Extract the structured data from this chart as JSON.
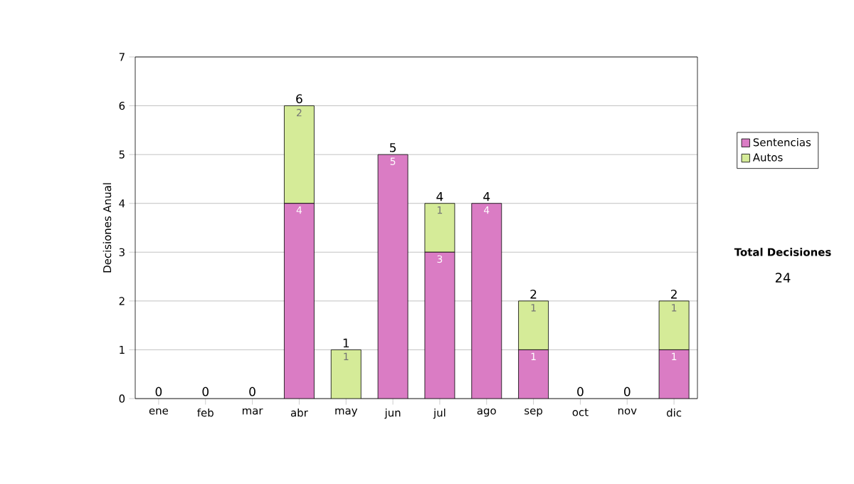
{
  "chart_data": {
    "type": "bar",
    "stacked": true,
    "ylabel": "Decisiones Anual",
    "categories": [
      "ene",
      "feb",
      "mar",
      "abr",
      "may",
      "jun",
      "jul",
      "ago",
      "sep",
      "oct",
      "nov",
      "dic"
    ],
    "series": [
      {
        "name": "Sentencias",
        "color": "#da7cc4",
        "values": [
          0,
          0,
          0,
          4,
          0,
          5,
          3,
          4,
          1,
          0,
          0,
          1
        ],
        "value_labels": [
          null,
          null,
          null,
          "4",
          null,
          "5",
          "3",
          "4",
          "1",
          null,
          null,
          "1"
        ]
      },
      {
        "name": "Autos",
        "color": "#d5eb98",
        "values": [
          0,
          0,
          0,
          2,
          1,
          0,
          1,
          0,
          1,
          0,
          0,
          1
        ],
        "value_labels": [
          null,
          null,
          null,
          "2",
          "1",
          null,
          "1",
          null,
          "1",
          null,
          null,
          "1"
        ]
      }
    ],
    "totals": [
      "0",
      "0",
      "0",
      "6",
      "1",
      "5",
      "4",
      "4",
      "2",
      "0",
      "0",
      "2"
    ],
    "ylim": [
      0,
      7
    ],
    "yticks": [
      0,
      1,
      2,
      3,
      4,
      5,
      6,
      7
    ],
    "grid": "y",
    "legend": "right",
    "annotations": [
      "Total Decisiones",
      "24"
    ]
  }
}
